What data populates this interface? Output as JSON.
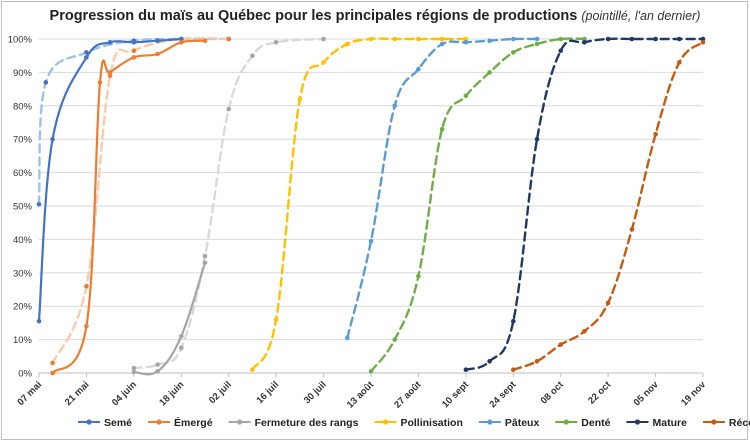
{
  "chart_data": {
    "type": "line",
    "title": "Progression du maïs au Québec pour les principales régions de productions",
    "subtitle": "(pointillé, l'an dernier)",
    "x_ticks": [
      "07 mai",
      "21 mai",
      "04 juin",
      "18 juin",
      "02 juil",
      "16 juil",
      "30 juil",
      "13 août",
      "27 août",
      "10 sept",
      "24 sept",
      "08 oct",
      "22 oct",
      "05 nov",
      "19 nov"
    ],
    "x_range": [
      "07 mai",
      "19 nov"
    ],
    "y_ticks": [
      "0%",
      "10%",
      "20%",
      "30%",
      "40%",
      "50%",
      "60%",
      "70%",
      "80%",
      "90%",
      "100%"
    ],
    "ylim": [
      0,
      100
    ],
    "grid": "horizontal",
    "legend_position": "bottom",
    "series": [
      {
        "name": "Semé",
        "color": "#4472C4",
        "year": "current",
        "x": [
          "07 mai",
          "11 mai",
          "21 mai",
          "28 mai",
          "04 juin",
          "11 juin",
          "18 juin"
        ],
        "y": [
          15.5,
          70,
          94.5,
          99,
          99,
          99.5,
          100
        ]
      },
      {
        "name": "Semé",
        "color": "#9DC3E6",
        "year": "previous",
        "x": [
          "07 mai",
          "09 mai",
          "21 mai",
          "04 juin",
          "18 juin",
          "02 juil"
        ],
        "y": [
          50.5,
          87,
          96,
          99.5,
          100,
          100
        ]
      },
      {
        "name": "Émergé",
        "color": "#ED7D31",
        "year": "current",
        "x": [
          "11 mai",
          "21 mai",
          "25 mai",
          "28 mai",
          "04 juin",
          "11 juin",
          "18 juin",
          "25 juin"
        ],
        "y": [
          0,
          14,
          87,
          90,
          94.5,
          95.5,
          99,
          99.5
        ]
      },
      {
        "name": "Émergé",
        "color": "#F8CBAD",
        "year": "previous",
        "x": [
          "11 mai",
          "21 mai",
          "28 mai",
          "04 juin",
          "18 juin",
          "02 juil"
        ],
        "y": [
          3,
          26,
          89,
          96.5,
          100,
          100
        ]
      },
      {
        "name": "Fermeture des rangs",
        "color": "#A5A5A5",
        "year": "current",
        "x": [
          "04 juin",
          "11 juin",
          "18 juin",
          "25 juin"
        ],
        "y": [
          0.3,
          0.5,
          11,
          33
        ]
      },
      {
        "name": "Fermeture des rangs",
        "color": "#D9D9D9",
        "year": "previous",
        "x": [
          "04 juin",
          "11 juin",
          "18 juin",
          "25 juin",
          "02 juil",
          "09 juil",
          "16 juil",
          "30 juil"
        ],
        "y": [
          1.5,
          2.5,
          7.5,
          35,
          79,
          95,
          99,
          100
        ]
      },
      {
        "name": "Pollinisation",
        "color": "#FFC000",
        "year": "previous",
        "x": [
          "09 juil",
          "16 juil",
          "23 juil",
          "30 juil",
          "06 août",
          "13 août",
          "20 août",
          "27 août",
          "03 sept",
          "10 sept"
        ],
        "y": [
          1,
          16,
          82,
          93,
          98.5,
          100,
          100,
          100,
          100,
          100
        ]
      },
      {
        "name": "Pâteux",
        "color": "#5B9BD5",
        "year": "previous",
        "x": [
          "06 août",
          "13 août",
          "20 août",
          "27 août",
          "03 sept",
          "10 sept",
          "17 sept",
          "24 sept",
          "01 oct"
        ],
        "y": [
          10.5,
          39.5,
          80,
          91,
          98.5,
          99,
          99.5,
          100,
          100
        ]
      },
      {
        "name": "Denté",
        "color": "#70AD47",
        "year": "previous",
        "x": [
          "13 août",
          "20 août",
          "27 août",
          "03 sept",
          "10 sept",
          "17 sept",
          "24 sept",
          "01 oct",
          "08 oct",
          "15 oct"
        ],
        "y": [
          0.5,
          10,
          29,
          73,
          83,
          90,
          96,
          98.5,
          100,
          100
        ]
      },
      {
        "name": "Mature",
        "color": "#203864",
        "year": "previous",
        "x": [
          "10 sept",
          "17 sept",
          "24 sept",
          "01 oct",
          "08 oct",
          "15 oct",
          "22 oct",
          "29 oct",
          "05 nov",
          "12 nov",
          "19 nov"
        ],
        "y": [
          1,
          3.5,
          15.5,
          70,
          96.5,
          99,
          100,
          100,
          100,
          100,
          100
        ]
      },
      {
        "name": "Récolte",
        "color": "#C55A11",
        "year": "previous",
        "x": [
          "24 sept",
          "01 oct",
          "08 oct",
          "15 oct",
          "22 oct",
          "29 oct",
          "05 nov",
          "12 nov",
          "19 nov"
        ],
        "y": [
          1,
          3.5,
          8.5,
          12.5,
          21,
          43,
          71.5,
          93,
          99
        ]
      }
    ],
    "legend": [
      {
        "name": "Semé",
        "color": "#4472C4"
      },
      {
        "name": "Émergé",
        "color": "#ED7D31"
      },
      {
        "name": "Fermeture des rangs",
        "color": "#A5A5A5"
      },
      {
        "name": "Pollinisation",
        "color": "#FFC000"
      },
      {
        "name": "Pâteux",
        "color": "#5B9BD5"
      },
      {
        "name": "Denté",
        "color": "#70AD47"
      },
      {
        "name": "Mature",
        "color": "#203864"
      },
      {
        "name": "Récolte",
        "color": "#C55A11"
      }
    ]
  }
}
